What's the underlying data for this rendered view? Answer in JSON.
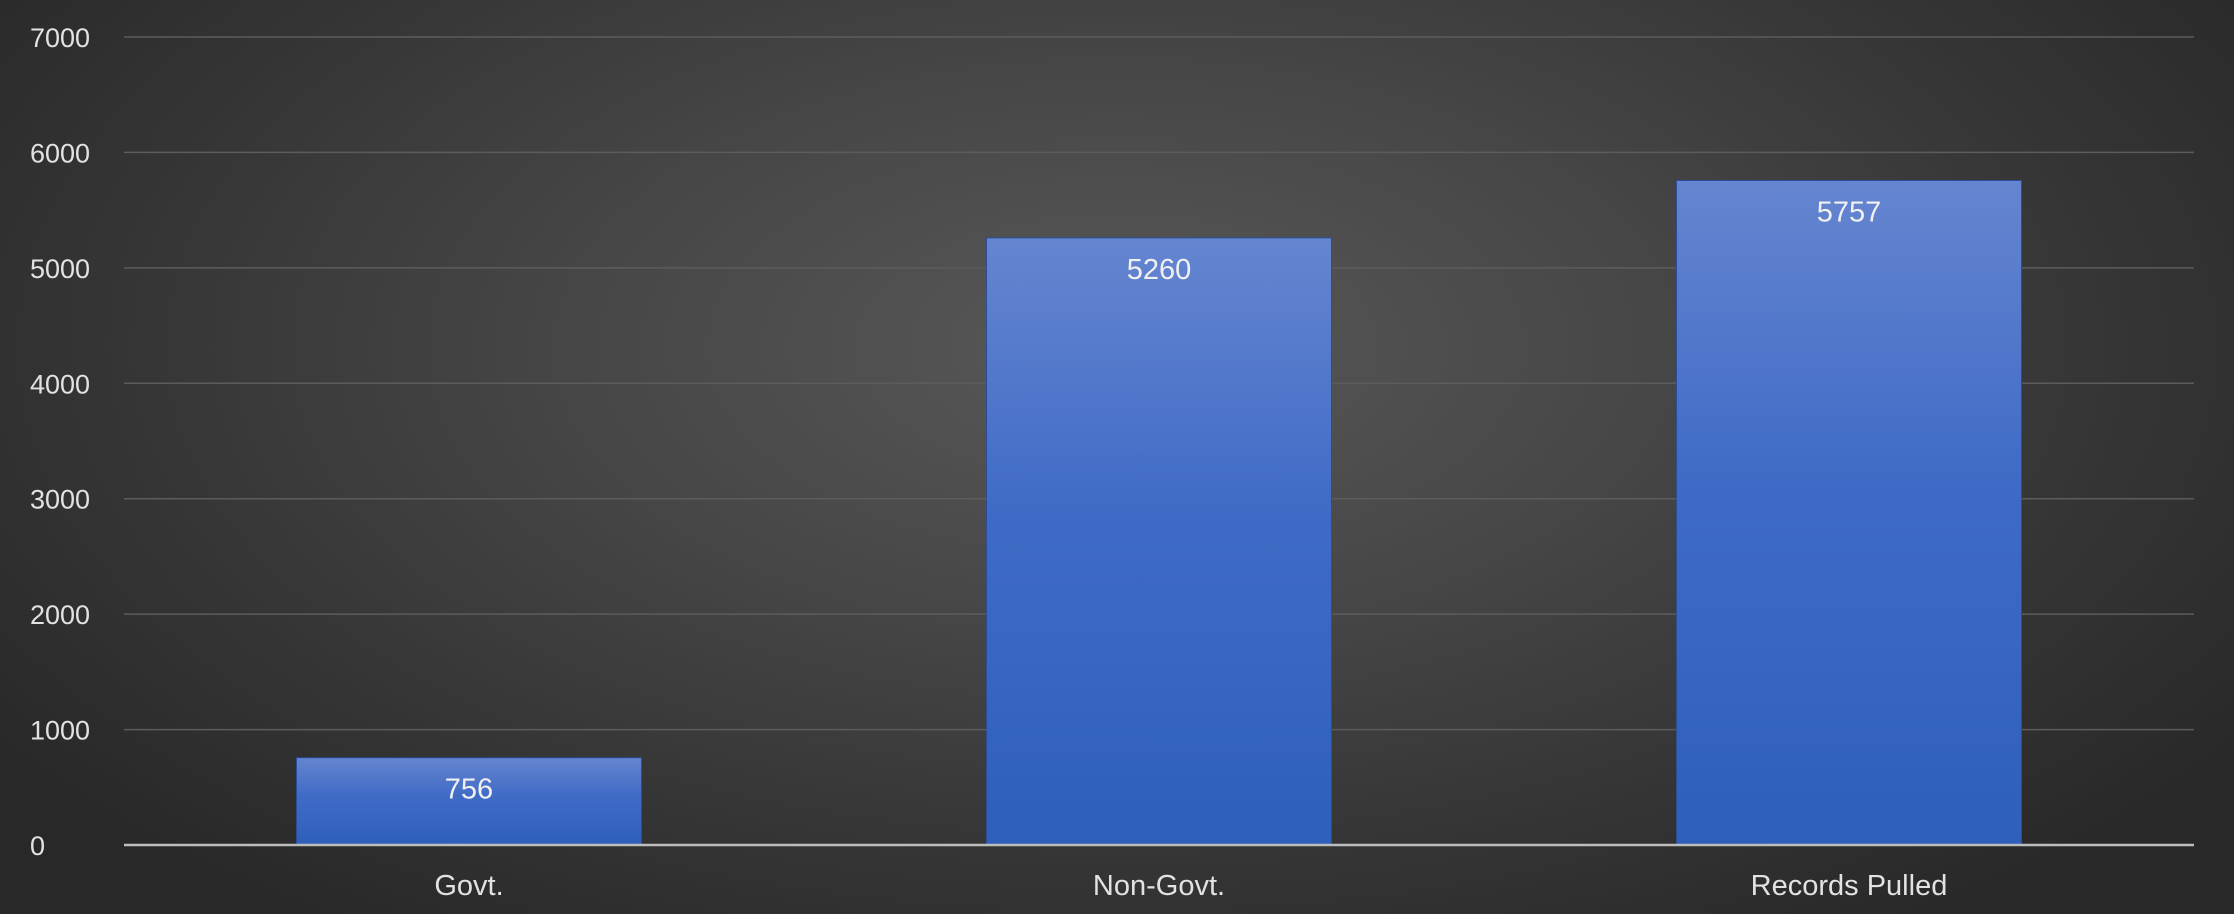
{
  "chart_data": {
    "type": "bar",
    "categories": [
      "Govt.",
      "Non-Govt.",
      "Records Pulled"
    ],
    "values": [
      756,
      5260,
      5757
    ],
    "data_labels": [
      "756",
      "5260",
      "5757"
    ],
    "y_ticks": [
      "0",
      "1000",
      "2000",
      "3000",
      "4000",
      "5000",
      "6000",
      "7000"
    ],
    "ylim": [
      0,
      7000
    ],
    "grid": true,
    "legend": "none",
    "colors": {
      "bar_top": "#6585d0",
      "bar_bottom": "#2f5fb9",
      "grid": "#5c5c5c",
      "axis": "#bdbdbd"
    }
  }
}
